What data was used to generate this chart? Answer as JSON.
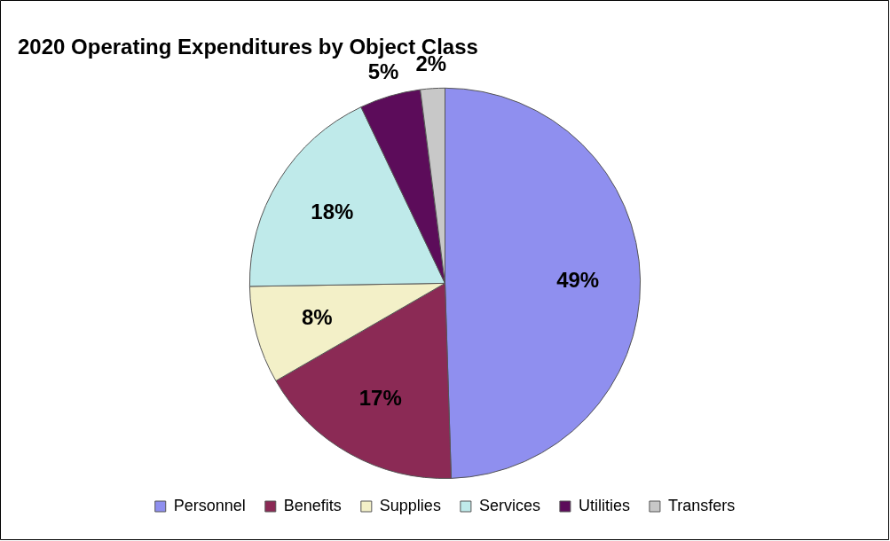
{
  "chart_data": {
    "type": "pie",
    "title": "2020 Operating Expenditures by Object Class",
    "categories": [
      "Personnel",
      "Benefits",
      "Supplies",
      "Services",
      "Utilities",
      "Transfers"
    ],
    "values": [
      49,
      17,
      8,
      18,
      5,
      2
    ],
    "value_labels": [
      "49%",
      "17%",
      "8%",
      "18%",
      "5%",
      "2%"
    ],
    "colors": [
      "#8f8fef",
      "#8b2a55",
      "#f3f0c8",
      "#bfeaea",
      "#5c0c5a",
      "#c8c8c8"
    ],
    "legend": "bottom"
  }
}
